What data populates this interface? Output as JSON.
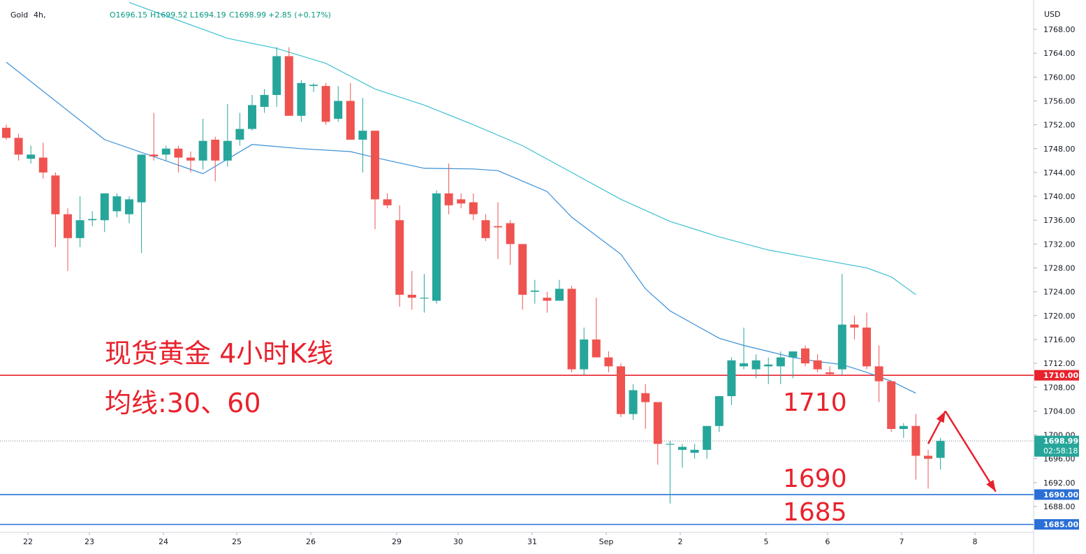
{
  "header": {
    "symbol": "Gold",
    "interval": "4h,",
    "open": "O1696.15",
    "high": "H1699.52",
    "low": "L1694.19",
    "close": "C1698.99",
    "change": "+2.85 (+0.17%)"
  },
  "currency_label": "USD",
  "annotations": {
    "title": "现货黄金 4小时K线",
    "ma_note": "均线:30、60",
    "level_1710": "1710",
    "level_1690": "1690",
    "level_1685": "1685"
  },
  "tags": {
    "last_price": "1698.99",
    "countdown": "02:58:18",
    "line_1710": "1710.00",
    "line_1690": "1690.00",
    "line_1685": "1685.00"
  },
  "colors": {
    "up": "#26a69a",
    "down": "#ef5350",
    "ma30": "#3a8fd8",
    "ma60": "#3fc1d3",
    "resistance": "#e8222d",
    "support": "#2b6fd6"
  },
  "chart_data": {
    "type": "candlestick",
    "symbol": "Gold",
    "interval": "4h",
    "currency": "USD",
    "x_labels": [
      "22",
      "23",
      "24",
      "25",
      "26",
      "29",
      "30",
      "31",
      "Sep",
      "2",
      "5",
      "6",
      "7",
      "8"
    ],
    "y_ticks": [
      1768,
      1764,
      1760,
      1756,
      1752,
      1748,
      1744,
      1740,
      1736,
      1732,
      1728,
      1724,
      1720,
      1716,
      1712,
      1708,
      1704,
      1700,
      1696,
      1692,
      1688
    ],
    "ylim": [
      1684,
      1770
    ],
    "grid": false,
    "candles": [
      [
        1751.5,
        1752.0,
        1749.5,
        1749.8
      ],
      [
        1749.8,
        1750.5,
        1746.0,
        1747.0
      ],
      [
        1746.3,
        1748.5,
        1745.5,
        1747.0
      ],
      [
        1746.5,
        1749.0,
        1743.0,
        1744.0
      ],
      [
        1743.5,
        1744.0,
        1731.5,
        1737.0
      ],
      [
        1737.0,
        1738.0,
        1727.5,
        1733.0
      ],
      [
        1733.0,
        1740.0,
        1731.5,
        1736.0
      ],
      [
        1736.0,
        1737.5,
        1735.0,
        1736.2
      ],
      [
        1736.0,
        1740.5,
        1734.0,
        1740.5
      ],
      [
        1737.5,
        1740.5,
        1736.5,
        1740.0
      ],
      [
        1737.0,
        1740.0,
        1735.5,
        1739.5
      ],
      [
        1739.0,
        1747.0,
        1730.5,
        1747.0
      ],
      [
        1747.0,
        1754.0,
        1746.0,
        1746.7
      ],
      [
        1747.0,
        1748.5,
        1746.0,
        1748.0
      ],
      [
        1748.0,
        1748.5,
        1744.0,
        1746.5
      ],
      [
        1746.5,
        1747.5,
        1744.0,
        1746.0
      ],
      [
        1746.0,
        1753.0,
        1744.5,
        1749.3
      ],
      [
        1749.5,
        1750.0,
        1742.5,
        1746.0
      ],
      [
        1746.0,
        1755.5,
        1745.0,
        1749.3
      ],
      [
        1749.5,
        1754.0,
        1748.5,
        1751.3
      ],
      [
        1751.3,
        1757.0,
        1751.0,
        1755.3
      ],
      [
        1755.0,
        1758.0,
        1754.0,
        1757.0
      ],
      [
        1757.0,
        1765.0,
        1755.0,
        1763.5
      ],
      [
        1763.5,
        1765.0,
        1753.5,
        1753.5
      ],
      [
        1753.5,
        1759.5,
        1752.5,
        1759.0
      ],
      [
        1758.5,
        1759.0,
        1757.5,
        1758.7
      ],
      [
        1758.5,
        1759.0,
        1752.0,
        1752.5
      ],
      [
        1753.0,
        1758.5,
        1752.5,
        1756.0
      ],
      [
        1756.0,
        1759.0,
        1749.5,
        1749.5
      ],
      [
        1749.5,
        1756.5,
        1744.0,
        1751.0
      ],
      [
        1751.0,
        1751.0,
        1734.5,
        1739.5
      ],
      [
        1739.5,
        1740.5,
        1738.0,
        1738.5
      ],
      [
        1736.0,
        1738.5,
        1721.5,
        1723.5
      ],
      [
        1723.5,
        1727.5,
        1721.0,
        1723.0
      ],
      [
        1723.0,
        1727.0,
        1720.5,
        1723.0
      ],
      [
        1722.5,
        1741.0,
        1722.0,
        1740.5
      ],
      [
        1740.5,
        1745.5,
        1737.0,
        1738.5
      ],
      [
        1739.5,
        1740.5,
        1738.0,
        1738.8
      ],
      [
        1739.0,
        1740.5,
        1736.0,
        1737.0
      ],
      [
        1736.0,
        1737.0,
        1732.5,
        1733.0
      ],
      [
        1735.0,
        1739.0,
        1729.5,
        1734.8
      ],
      [
        1735.5,
        1736.0,
        1728.5,
        1732.0
      ],
      [
        1732.0,
        1732.0,
        1721.0,
        1723.5
      ],
      [
        1724.0,
        1726.0,
        1722.0,
        1724.2
      ],
      [
        1723.0,
        1724.0,
        1720.5,
        1722.5
      ],
      [
        1722.5,
        1726.0,
        1722.5,
        1724.5
      ],
      [
        1724.5,
        1725.0,
        1710.5,
        1711.0
      ],
      [
        1711.0,
        1718.0,
        1710.0,
        1716.0
      ],
      [
        1716.0,
        1723.0,
        1713.0,
        1713.0
      ],
      [
        1713.0,
        1714.0,
        1710.5,
        1711.5
      ],
      [
        1711.5,
        1712.0,
        1703.0,
        1703.5
      ],
      [
        1703.5,
        1708.5,
        1702.5,
        1707.5
      ],
      [
        1707.0,
        1708.5,
        1701.0,
        1705.5
      ],
      [
        1705.5,
        1705.5,
        1695.0,
        1698.5
      ],
      [
        1698.5,
        1699.0,
        1688.5,
        1698.5
      ],
      [
        1697.5,
        1698.5,
        1694.5,
        1698.0
      ],
      [
        1697.0,
        1698.5,
        1696.0,
        1697.5
      ],
      [
        1697.5,
        1701.5,
        1696.0,
        1701.5
      ],
      [
        1701.5,
        1706.5,
        1700.5,
        1706.5
      ],
      [
        1706.5,
        1713.0,
        1705.0,
        1712.5
      ],
      [
        1711.5,
        1718.0,
        1711.0,
        1712.0
      ],
      [
        1711.0,
        1713.5,
        1709.5,
        1712.5
      ],
      [
        1711.5,
        1713.0,
        1708.5,
        1711.8
      ],
      [
        1711.5,
        1714.0,
        1708.5,
        1713.0
      ],
      [
        1713.0,
        1714.0,
        1709.5,
        1714.0
      ],
      [
        1714.5,
        1715.0,
        1711.5,
        1712.0
      ],
      [
        1712.5,
        1713.5,
        1710.5,
        1711.0
      ],
      [
        1710.5,
        1711.5,
        1710.0,
        1710.2
      ],
      [
        1711.0,
        1727.0,
        1710.0,
        1718.5
      ],
      [
        1718.5,
        1720.0,
        1716.0,
        1718.0
      ],
      [
        1718.0,
        1720.5,
        1711.0,
        1711.5
      ],
      [
        1711.5,
        1715.0,
        1705.5,
        1709.0
      ],
      [
        1709.0,
        1709.0,
        1700.5,
        1701.0
      ],
      [
        1701.0,
        1702.0,
        1699.5,
        1701.5
      ],
      [
        1701.5,
        1703.5,
        1692.5,
        1696.5
      ],
      [
        1696.5,
        1697.5,
        1691.0,
        1696.0
      ],
      [
        1696.15,
        1699.52,
        1694.19,
        1698.99
      ]
    ],
    "series": [
      {
        "name": "MA30",
        "type": "line",
        "points": [
          [
            0,
            1762.5
          ],
          [
            8,
            1749.5
          ],
          [
            16,
            1743.8
          ],
          [
            20,
            1748.7
          ],
          [
            24,
            1748.0
          ],
          [
            28,
            1747.5
          ],
          [
            30,
            1746.5
          ],
          [
            34,
            1744.7
          ],
          [
            38,
            1744.6
          ],
          [
            40,
            1744.3
          ],
          [
            44,
            1740.8
          ],
          [
            46,
            1736.5
          ],
          [
            50,
            1730.3
          ],
          [
            52,
            1724.5
          ],
          [
            54,
            1720.8
          ],
          [
            56,
            1718.5
          ],
          [
            58,
            1716.2
          ],
          [
            60,
            1715.0
          ],
          [
            62,
            1714.0
          ],
          [
            64,
            1713.0
          ],
          [
            66,
            1712.3
          ],
          [
            68,
            1711.8
          ],
          [
            70,
            1710.5
          ],
          [
            72,
            1709.0
          ],
          [
            74,
            1707.0
          ]
        ]
      },
      {
        "name": "MA60",
        "type": "line",
        "points": [
          [
            10,
            1772.5
          ],
          [
            18,
            1766.5
          ],
          [
            22,
            1764.8
          ],
          [
            26,
            1762.3
          ],
          [
            30,
            1758.0
          ],
          [
            34,
            1755.3
          ],
          [
            38,
            1752.0
          ],
          [
            42,
            1748.5
          ],
          [
            46,
            1744.0
          ],
          [
            50,
            1739.5
          ],
          [
            54,
            1735.8
          ],
          [
            58,
            1733.2
          ],
          [
            62,
            1731.0
          ],
          [
            66,
            1729.5
          ],
          [
            70,
            1728.0
          ],
          [
            72,
            1726.5
          ],
          [
            74,
            1723.5
          ]
        ]
      }
    ],
    "horizontal_lines": [
      {
        "label": "1710.00",
        "value": 1710
      },
      {
        "label": "1690.00",
        "value": 1690
      },
      {
        "label": "1685.00",
        "value": 1685
      }
    ],
    "last_price": 1698.99,
    "forecast_arrows": [
      [
        [
          75,
          1698.5
        ],
        [
          76.4,
          1704
        ]
      ],
      [
        [
          76.4,
          1704
        ],
        [
          80.5,
          1690.5
        ]
      ]
    ]
  }
}
